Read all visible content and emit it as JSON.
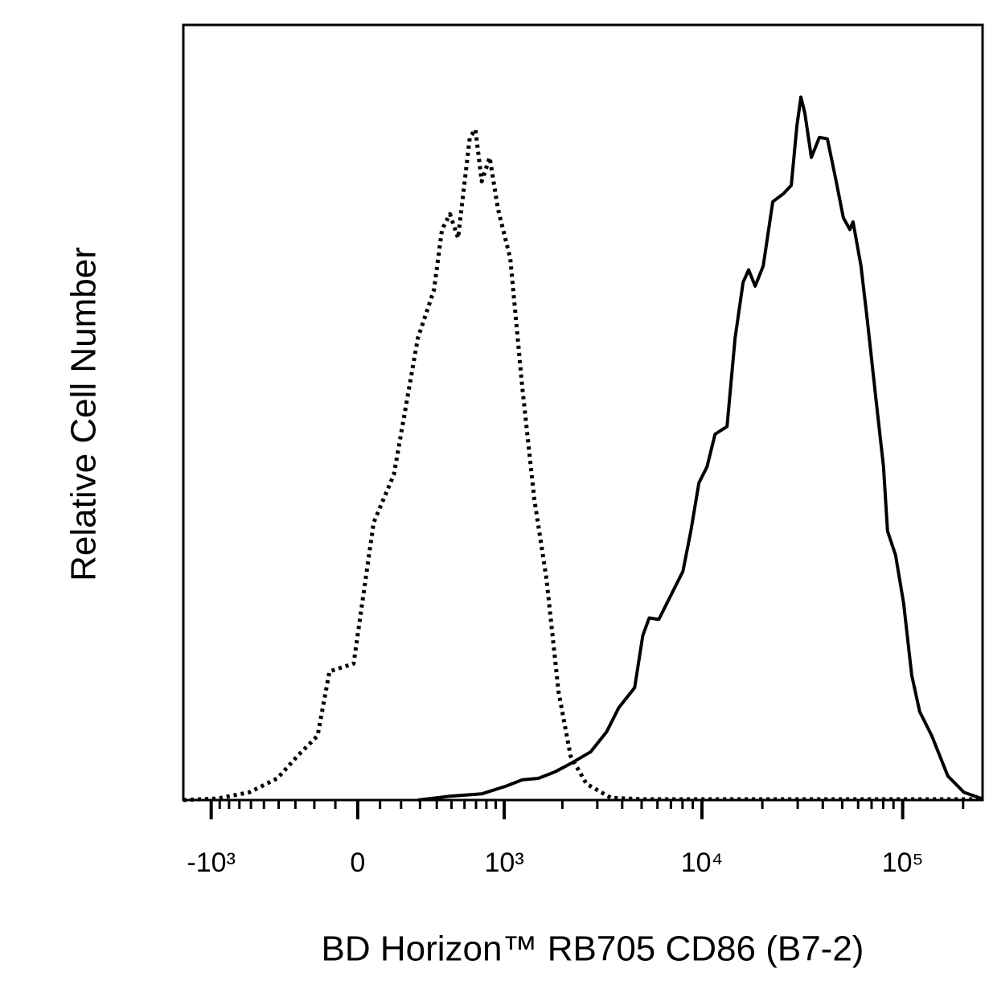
{
  "chart_data": {
    "type": "line",
    "xlabel": "BD Horizon™ RB705 CD86 (B7-2)",
    "ylabel": "Relative Cell Number",
    "xscale": "biexponential",
    "xlim": [
      -1400,
      250000
    ],
    "ylim": [
      0,
      100
    ],
    "xticks": [
      {
        "value": -1000,
        "label": "-10³"
      },
      0,
      {
        "value": 1000,
        "label": "10³"
      },
      {
        "value": 10000,
        "label": "10⁴"
      },
      {
        "value": 100000,
        "label": "10⁵"
      }
    ],
    "xminorticks": [
      -900,
      -800,
      -700,
      -600,
      -500,
      -400,
      -300,
      -200,
      -100,
      100,
      200,
      300,
      400,
      500,
      600,
      700,
      800,
      900,
      2000,
      3000,
      4000,
      5000,
      6000,
      7000,
      8000,
      9000,
      20000,
      30000,
      40000,
      50000,
      60000,
      70000,
      80000,
      90000,
      200000
    ],
    "series": [
      {
        "color": "#000000",
        "dash": "dotted",
        "x": [
          -1400,
          -926,
          -613,
          -408,
          -288,
          -184,
          -127,
          -18,
          71,
          165,
          288,
          382,
          434,
          489,
          549,
          645,
          695,
          754,
          834,
          926,
          1077,
          1243,
          1436,
          1660,
          1911,
          2200,
          2644,
          3501,
          5068,
          246000
        ],
        "values": [
          0,
          0.2,
          1.0,
          2.8,
          5.7,
          8.3,
          16.6,
          17.6,
          35.8,
          42.0,
          59.6,
          65.8,
          73.6,
          75.6,
          72.5,
          85.5,
          86.5,
          79.8,
          82.9,
          76.2,
          69.9,
          53.4,
          38.9,
          28.5,
          14.0,
          5.7,
          2.1,
          0.3,
          0.1,
          0.1
        ]
      },
      {
        "color": "#000000",
        "dash": "solid",
        "x": [
          288,
          489,
          754,
          1025,
          1243,
          1508,
          1822,
          2200,
          2774,
          3341,
          3841,
          4617,
          5068,
          5455,
          6091,
          6994,
          8034,
          8805,
          9656,
          10597,
          11620,
          13337,
          14630,
          16040,
          17100,
          18412,
          20190,
          22540,
          25400,
          27860,
          29720,
          31130,
          32580,
          35090,
          38470,
          42160,
          46230,
          50680,
          54580,
          56600,
          62020,
          66800,
          73220,
          80270,
          84050,
          92140,
          101100,
          110900,
          121500,
          139600,
          167900,
          201800,
          247000
        ],
        "values": [
          0,
          0.5,
          0.8,
          1.8,
          2.6,
          2.8,
          3.6,
          4.7,
          6.2,
          8.8,
          11.9,
          14.5,
          21.2,
          23.5,
          23.3,
          26.4,
          29.5,
          34.7,
          40.9,
          43.0,
          47.2,
          48.2,
          59.6,
          66.8,
          68.4,
          66.3,
          68.9,
          77.2,
          78.2,
          79.3,
          87.0,
          90.7,
          88.6,
          82.9,
          85.5,
          85.3,
          80.3,
          75.1,
          73.6,
          74.6,
          68.9,
          61.7,
          52.3,
          43.0,
          34.7,
          31.6,
          25.4,
          16.1,
          11.4,
          8.3,
          3.1,
          1.0,
          0.2
        ]
      }
    ]
  }
}
